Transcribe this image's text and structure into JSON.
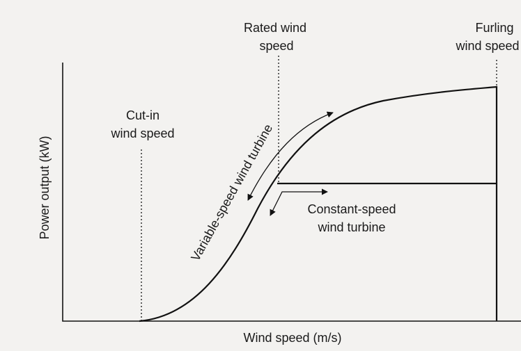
{
  "axes": {
    "x_label": "Wind speed (m/s)",
    "y_label": "Power output (kW)"
  },
  "annotations": {
    "cut_in": [
      "Cut-in",
      "wind speed"
    ],
    "rated": [
      "Rated wind",
      "speed"
    ],
    "furling": [
      "Furling",
      "wind speed"
    ],
    "constant_speed": [
      "Constant-speed",
      "wind turbine"
    ],
    "variable_speed": "Variable-speed wind turbine"
  }
}
